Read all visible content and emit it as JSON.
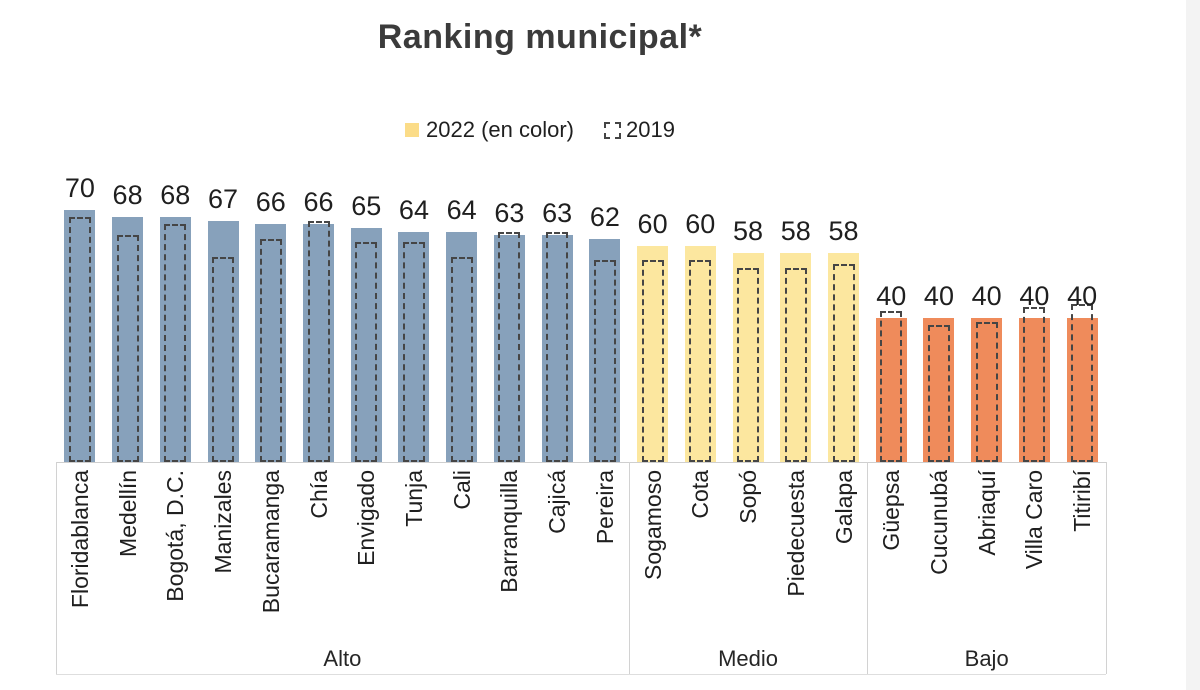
{
  "title": "Ranking municipal*",
  "legend": {
    "items": [
      {
        "label": "2022 (en color)",
        "swatch": "filled-square",
        "color": "#fbdc88"
      },
      {
        "label": "2019",
        "swatch": "dashed-outline-square",
        "color": "#454545"
      }
    ]
  },
  "chart_data": {
    "type": "bar",
    "title": "Ranking municipal*",
    "xlabel": "",
    "ylabel": "",
    "ylim": [
      0,
      75
    ],
    "gridlines": false,
    "legend_position": "top-center",
    "series_names": [
      "2022 (en color)",
      "2019"
    ],
    "groups": [
      {
        "label": "Alto",
        "bar_color": "#87a1bb",
        "bars": [
          {
            "name": "Floridablanca",
            "y2022": 70,
            "y2019": 68
          },
          {
            "name": "Medellín",
            "y2022": 68,
            "y2019": 63
          },
          {
            "name": "Bogotá, D.C.",
            "y2022": 68,
            "y2019": 66
          },
          {
            "name": "Manizales",
            "y2022": 67,
            "y2019": 57
          },
          {
            "name": "Bucaramanga",
            "y2022": 66,
            "y2019": 62
          },
          {
            "name": "Chía",
            "y2022": 66,
            "y2019": 67
          },
          {
            "name": "Envigado",
            "y2022": 65,
            "y2019": 61
          },
          {
            "name": "Tunja",
            "y2022": 64,
            "y2019": 61
          },
          {
            "name": "Cali",
            "y2022": 64,
            "y2019": 57
          },
          {
            "name": "Barranquilla",
            "y2022": 63,
            "y2019": 64
          },
          {
            "name": "Cajicá",
            "y2022": 63,
            "y2019": 64
          },
          {
            "name": "Pereira",
            "y2022": 62,
            "y2019": 56
          }
        ]
      },
      {
        "label": "Medio",
        "bar_color": "#fce79f",
        "bars": [
          {
            "name": "Sogamoso",
            "y2022": 60,
            "y2019": 56
          },
          {
            "name": "Cota",
            "y2022": 60,
            "y2019": 56
          },
          {
            "name": "Sopó",
            "y2022": 58,
            "y2019": 54
          },
          {
            "name": "Piedecuesta",
            "y2022": 58,
            "y2019": 54
          },
          {
            "name": "Galapa",
            "y2022": 58,
            "y2019": 55
          }
        ]
      },
      {
        "label": "Bajo",
        "bar_color": "#ef8b5b",
        "bars": [
          {
            "name": "Güepsa",
            "y2022": 40,
            "y2019": 42
          },
          {
            "name": "Cucunubá",
            "y2022": 40,
            "y2019": 38
          },
          {
            "name": "Abriaquí",
            "y2022": 40,
            "y2019": 39
          },
          {
            "name": "Villa Caro",
            "y2022": 40,
            "y2019": 43
          },
          {
            "name": "Titiribí",
            "y2022": 40,
            "y2019": 44
          }
        ]
      }
    ]
  },
  "colors": {
    "alto": "#87a1bb",
    "medio": "#fce79f",
    "bajo": "#ef8b5b",
    "dash": "#454545",
    "axis": "#cfcfcf",
    "text": "#262626",
    "title": "#3b3b3b"
  }
}
